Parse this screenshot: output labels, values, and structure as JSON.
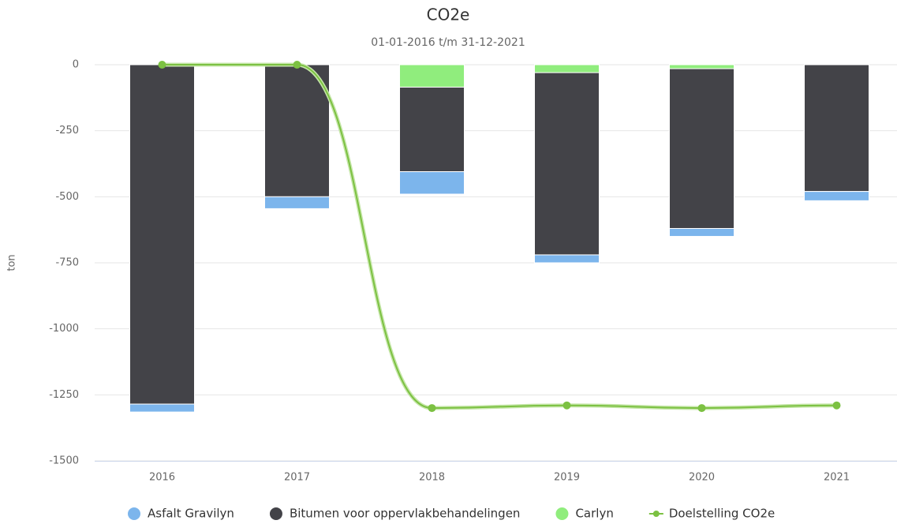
{
  "chart_data": {
    "type": "bar",
    "stacked": true,
    "title": "CO2e",
    "subtitle": "01-01-2016 t/m 31-12-2021",
    "y_label": "ton",
    "categories": [
      "2016",
      "2017",
      "2018",
      "2019",
      "2020",
      "2021"
    ],
    "series": [
      {
        "name": "Asfalt Gravilyn",
        "color": "#7cb5ec",
        "values": [
          -30,
          -45,
          -85,
          -30,
          -30,
          -35
        ]
      },
      {
        "name": "Bitumen voor oppervlakbehandelingen",
        "color": "#434348",
        "values": [
          -1285,
          -500,
          -320,
          -690,
          -605,
          -480
        ]
      },
      {
        "name": "Carlyn",
        "color": "#90ed7d",
        "values": [
          0,
          0,
          -85,
          -30,
          -15,
          0
        ]
      },
      {
        "name": "Doelstelling CO2e",
        "color": "#7cc142",
        "type": "line",
        "values": [
          0,
          0,
          -1300,
          -1290,
          -1300,
          -1290
        ]
      }
    ],
    "ylim": [
      -1500,
      0
    ],
    "yticks": [
      0,
      -250,
      -500,
      -750,
      -1000,
      -1250,
      -1500
    ],
    "grid": true,
    "legend": "bottom"
  }
}
